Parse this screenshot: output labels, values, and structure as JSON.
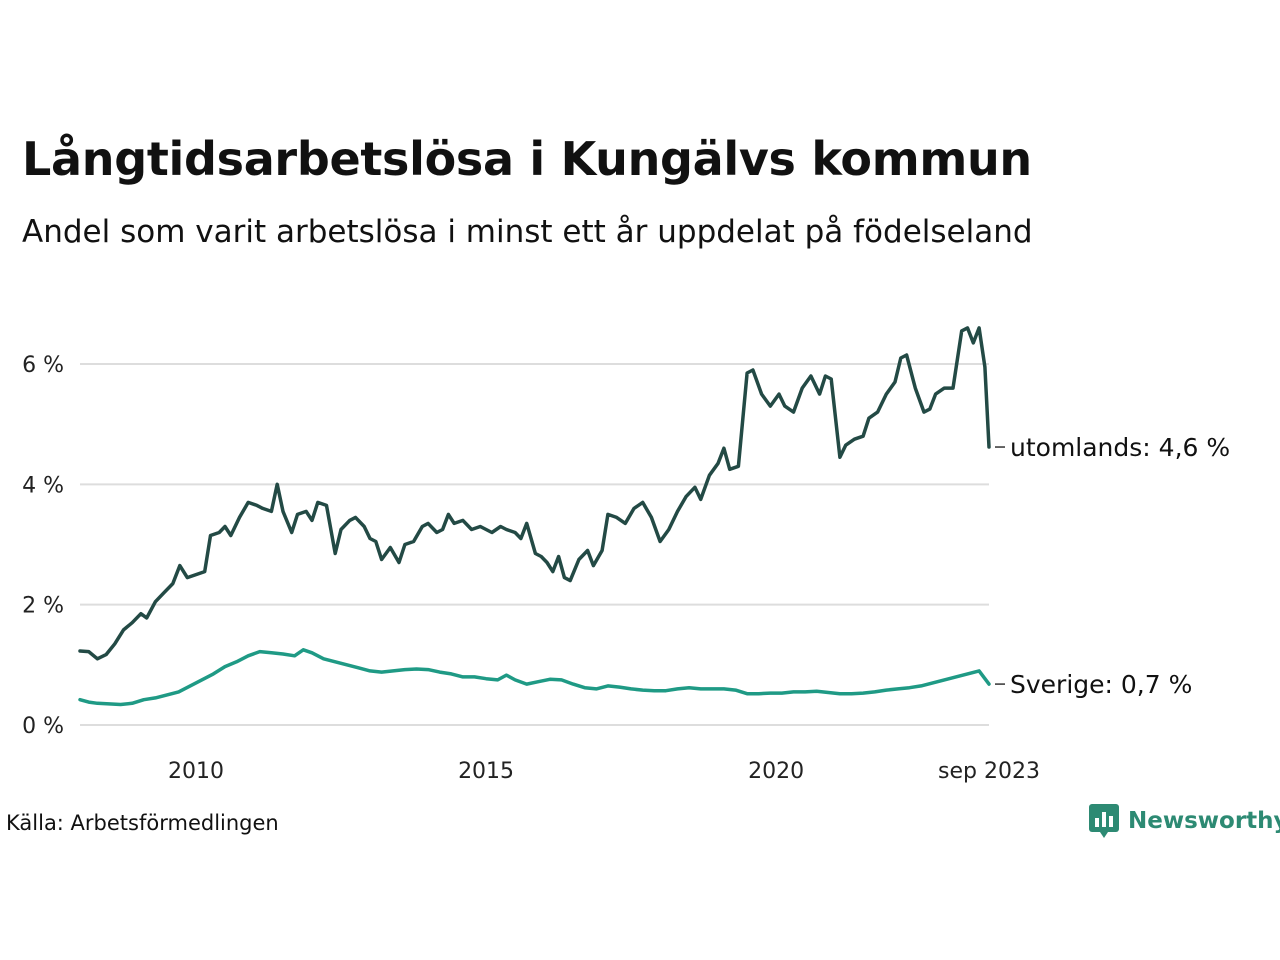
{
  "title": "Långtidsarbetslösa i Kungälvs kommun",
  "subtitle": "Andel som varit arbetslösa i minst ett år uppdelat på födelseland",
  "source": "Källa: Arbetsförmedlingen",
  "brand": "Newsworthy",
  "colors": {
    "utomlands": "#234a45",
    "sverige": "#1f9a85",
    "grid": "#dddddd",
    "brand": "#2d8a73"
  },
  "chart_data": {
    "type": "line",
    "title": "Långtidsarbetslösa i Kungälvs kommun",
    "ylabel": "",
    "xlabel": "",
    "x_start": "2008-01",
    "x_end": "2023-09",
    "x_tick_labels": [
      "2010",
      "2015",
      "2020",
      "sep 2023"
    ],
    "x_tick_positions": [
      2010.0,
      2015.0,
      2020.0,
      2023.67
    ],
    "y_ticks": [
      0,
      2,
      4,
      6
    ],
    "y_tick_labels": [
      "0 %",
      "2 %",
      "4 %",
      "6 %"
    ],
    "ylim": [
      0,
      7.2
    ],
    "xlim": [
      2008.0,
      2023.67
    ],
    "series": [
      {
        "name": "utomlands",
        "end_label": "utomlands: 4,6 %",
        "points": [
          [
            2008.0,
            1.23
          ],
          [
            2008.15,
            1.22
          ],
          [
            2008.3,
            1.1
          ],
          [
            2008.45,
            1.17
          ],
          [
            2008.6,
            1.35
          ],
          [
            2008.75,
            1.58
          ],
          [
            2008.9,
            1.7
          ],
          [
            2009.05,
            1.85
          ],
          [
            2009.15,
            1.78
          ],
          [
            2009.3,
            2.05
          ],
          [
            2009.45,
            2.2
          ],
          [
            2009.6,
            2.35
          ],
          [
            2009.72,
            2.65
          ],
          [
            2009.85,
            2.45
          ],
          [
            2010.0,
            2.5
          ],
          [
            2010.15,
            2.55
          ],
          [
            2010.25,
            3.15
          ],
          [
            2010.4,
            3.2
          ],
          [
            2010.5,
            3.3
          ],
          [
            2010.6,
            3.15
          ],
          [
            2010.75,
            3.45
          ],
          [
            2010.9,
            3.7
          ],
          [
            2011.05,
            3.65
          ],
          [
            2011.15,
            3.6
          ],
          [
            2011.3,
            3.55
          ],
          [
            2011.4,
            4.0
          ],
          [
            2011.5,
            3.55
          ],
          [
            2011.65,
            3.2
          ],
          [
            2011.75,
            3.5
          ],
          [
            2011.9,
            3.55
          ],
          [
            2012.0,
            3.4
          ],
          [
            2012.1,
            3.7
          ],
          [
            2012.25,
            3.65
          ],
          [
            2012.4,
            2.85
          ],
          [
            2012.5,
            3.25
          ],
          [
            2012.65,
            3.4
          ],
          [
            2012.75,
            3.45
          ],
          [
            2012.9,
            3.3
          ],
          [
            2013.0,
            3.1
          ],
          [
            2013.1,
            3.05
          ],
          [
            2013.2,
            2.75
          ],
          [
            2013.35,
            2.95
          ],
          [
            2013.5,
            2.7
          ],
          [
            2013.6,
            3.0
          ],
          [
            2013.75,
            3.05
          ],
          [
            2013.9,
            3.3
          ],
          [
            2014.0,
            3.35
          ],
          [
            2014.15,
            3.2
          ],
          [
            2014.25,
            3.25
          ],
          [
            2014.35,
            3.5
          ],
          [
            2014.45,
            3.35
          ],
          [
            2014.6,
            3.4
          ],
          [
            2014.75,
            3.25
          ],
          [
            2014.9,
            3.3
          ],
          [
            2015.0,
            3.25
          ],
          [
            2015.1,
            3.2
          ],
          [
            2015.25,
            3.3
          ],
          [
            2015.35,
            3.25
          ],
          [
            2015.5,
            3.2
          ],
          [
            2015.6,
            3.1
          ],
          [
            2015.7,
            3.35
          ],
          [
            2015.85,
            2.85
          ],
          [
            2015.95,
            2.8
          ],
          [
            2016.05,
            2.7
          ],
          [
            2016.15,
            2.55
          ],
          [
            2016.25,
            2.8
          ],
          [
            2016.35,
            2.45
          ],
          [
            2016.45,
            2.4
          ],
          [
            2016.6,
            2.75
          ],
          [
            2016.75,
            2.9
          ],
          [
            2016.85,
            2.65
          ],
          [
            2017.0,
            2.9
          ],
          [
            2017.1,
            3.5
          ],
          [
            2017.25,
            3.45
          ],
          [
            2017.4,
            3.35
          ],
          [
            2017.55,
            3.6
          ],
          [
            2017.7,
            3.7
          ],
          [
            2017.85,
            3.45
          ],
          [
            2018.0,
            3.05
          ],
          [
            2018.15,
            3.25
          ],
          [
            2018.3,
            3.55
          ],
          [
            2018.45,
            3.8
          ],
          [
            2018.6,
            3.95
          ],
          [
            2018.7,
            3.75
          ],
          [
            2018.85,
            4.15
          ],
          [
            2019.0,
            4.35
          ],
          [
            2019.1,
            4.6
          ],
          [
            2019.2,
            4.25
          ],
          [
            2019.35,
            4.3
          ],
          [
            2019.5,
            5.85
          ],
          [
            2019.6,
            5.9
          ],
          [
            2019.75,
            5.5
          ],
          [
            2019.9,
            5.3
          ],
          [
            2020.05,
            5.5
          ],
          [
            2020.15,
            5.3
          ],
          [
            2020.3,
            5.2
          ],
          [
            2020.45,
            5.6
          ],
          [
            2020.6,
            5.8
          ],
          [
            2020.75,
            5.5
          ],
          [
            2020.85,
            5.8
          ],
          [
            2020.95,
            5.75
          ],
          [
            2021.1,
            4.45
          ],
          [
            2021.2,
            4.65
          ],
          [
            2021.35,
            4.75
          ],
          [
            2021.5,
            4.8
          ],
          [
            2021.6,
            5.1
          ],
          [
            2021.75,
            5.2
          ],
          [
            2021.9,
            5.5
          ],
          [
            2022.05,
            5.7
          ],
          [
            2022.15,
            6.1
          ],
          [
            2022.25,
            6.15
          ],
          [
            2022.4,
            5.6
          ],
          [
            2022.55,
            5.2
          ],
          [
            2022.65,
            5.25
          ],
          [
            2022.75,
            5.5
          ],
          [
            2022.9,
            5.6
          ],
          [
            2023.05,
            5.6
          ],
          [
            2023.2,
            6.55
          ],
          [
            2023.3,
            6.6
          ],
          [
            2023.4,
            6.35
          ],
          [
            2023.5,
            6.6
          ],
          [
            2023.6,
            5.95
          ],
          [
            2023.67,
            4.62
          ]
        ]
      },
      {
        "name": "Sverige",
        "end_label": "Sverige: 0,7 %",
        "points": [
          [
            2008.0,
            0.42
          ],
          [
            2008.15,
            0.38
          ],
          [
            2008.3,
            0.36
          ],
          [
            2008.5,
            0.35
          ],
          [
            2008.7,
            0.34
          ],
          [
            2008.9,
            0.36
          ],
          [
            2009.1,
            0.42
          ],
          [
            2009.3,
            0.45
          ],
          [
            2009.5,
            0.5
          ],
          [
            2009.7,
            0.55
          ],
          [
            2009.9,
            0.65
          ],
          [
            2010.1,
            0.75
          ],
          [
            2010.3,
            0.85
          ],
          [
            2010.5,
            0.97
          ],
          [
            2010.7,
            1.05
          ],
          [
            2010.9,
            1.15
          ],
          [
            2011.1,
            1.22
          ],
          [
            2011.3,
            1.2
          ],
          [
            2011.5,
            1.18
          ],
          [
            2011.7,
            1.15
          ],
          [
            2011.85,
            1.25
          ],
          [
            2012.0,
            1.2
          ],
          [
            2012.2,
            1.1
          ],
          [
            2012.4,
            1.05
          ],
          [
            2012.6,
            1.0
          ],
          [
            2012.8,
            0.95
          ],
          [
            2013.0,
            0.9
          ],
          [
            2013.2,
            0.88
          ],
          [
            2013.4,
            0.9
          ],
          [
            2013.6,
            0.92
          ],
          [
            2013.8,
            0.93
          ],
          [
            2014.0,
            0.92
          ],
          [
            2014.2,
            0.88
          ],
          [
            2014.4,
            0.85
          ],
          [
            2014.6,
            0.8
          ],
          [
            2014.8,
            0.8
          ],
          [
            2015.0,
            0.77
          ],
          [
            2015.2,
            0.75
          ],
          [
            2015.35,
            0.83
          ],
          [
            2015.5,
            0.75
          ],
          [
            2015.7,
            0.68
          ],
          [
            2015.9,
            0.72
          ],
          [
            2016.1,
            0.76
          ],
          [
            2016.3,
            0.75
          ],
          [
            2016.5,
            0.68
          ],
          [
            2016.7,
            0.62
          ],
          [
            2016.9,
            0.6
          ],
          [
            2017.1,
            0.65
          ],
          [
            2017.3,
            0.63
          ],
          [
            2017.5,
            0.6
          ],
          [
            2017.7,
            0.58
          ],
          [
            2017.9,
            0.57
          ],
          [
            2018.1,
            0.57
          ],
          [
            2018.3,
            0.6
          ],
          [
            2018.5,
            0.62
          ],
          [
            2018.7,
            0.6
          ],
          [
            2018.9,
            0.6
          ],
          [
            2019.1,
            0.6
          ],
          [
            2019.3,
            0.58
          ],
          [
            2019.5,
            0.52
          ],
          [
            2019.7,
            0.52
          ],
          [
            2019.9,
            0.53
          ],
          [
            2020.1,
            0.53
          ],
          [
            2020.3,
            0.55
          ],
          [
            2020.5,
            0.55
          ],
          [
            2020.7,
            0.56
          ],
          [
            2020.9,
            0.54
          ],
          [
            2021.1,
            0.52
          ],
          [
            2021.3,
            0.52
          ],
          [
            2021.5,
            0.53
          ],
          [
            2021.7,
            0.55
          ],
          [
            2021.9,
            0.58
          ],
          [
            2022.1,
            0.6
          ],
          [
            2022.3,
            0.62
          ],
          [
            2022.5,
            0.65
          ],
          [
            2022.7,
            0.7
          ],
          [
            2022.9,
            0.75
          ],
          [
            2023.1,
            0.8
          ],
          [
            2023.3,
            0.85
          ],
          [
            2023.5,
            0.9
          ],
          [
            2023.67,
            0.68
          ]
        ]
      }
    ]
  }
}
